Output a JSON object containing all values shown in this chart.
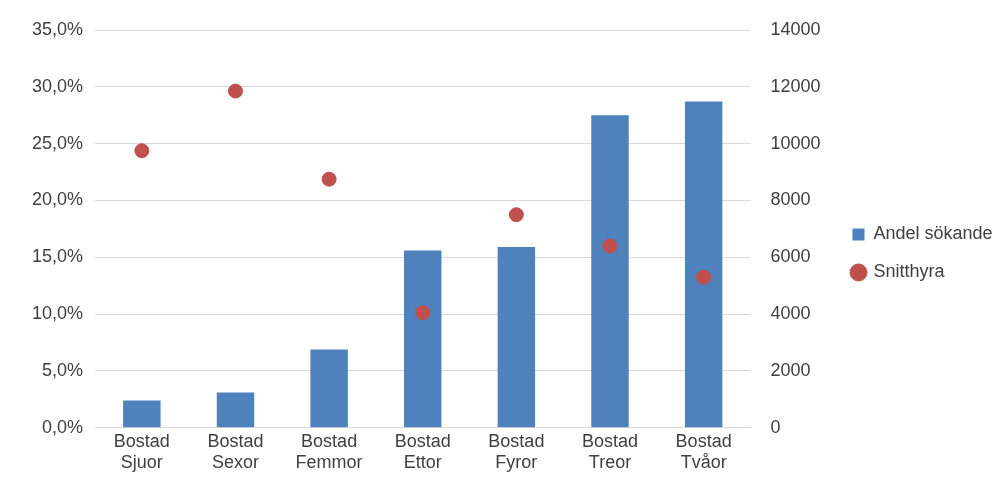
{
  "chart_data": {
    "type": "bar",
    "categories": [
      "Bostad Sjuor",
      "Bostad Sexor",
      "Bostad Femmor",
      "Bostad Ettor",
      "Bostad Fyror",
      "Bostad Treor",
      "Bostad Tvåor"
    ],
    "series": [
      {
        "name": "Andel sökande",
        "color": "#4f81bd",
        "values": [
          2.4,
          3.1,
          6.9,
          15.6,
          15.9,
          27.5,
          28.7
        ]
      },
      {
        "name": "Snitthyra",
        "type": "scatter",
        "axis": "y2",
        "color": "#c0504d",
        "values": [
          9750,
          11850,
          8750,
          4050,
          7500,
          6400,
          5300
        ]
      }
    ],
    "ylim": [
      0,
      35
    ],
    "yticks": [
      {
        "value": 0,
        "label": "0,0%"
      },
      {
        "value": 5,
        "label": "5,0%"
      },
      {
        "value": 10,
        "label": "10,0%"
      },
      {
        "value": 15,
        "label": "15,0%"
      },
      {
        "value": 20,
        "label": "20,0%"
      },
      {
        "value": 25,
        "label": "25,0%"
      },
      {
        "value": 30,
        "label": "30,0%"
      },
      {
        "value": 35,
        "label": "35,0%"
      }
    ],
    "y2lim": [
      0,
      14000
    ],
    "y2ticks": [
      0,
      2000,
      4000,
      6000,
      8000,
      10000,
      12000,
      14000
    ],
    "grid": "y",
    "legend": "right",
    "marker": "circle"
  }
}
